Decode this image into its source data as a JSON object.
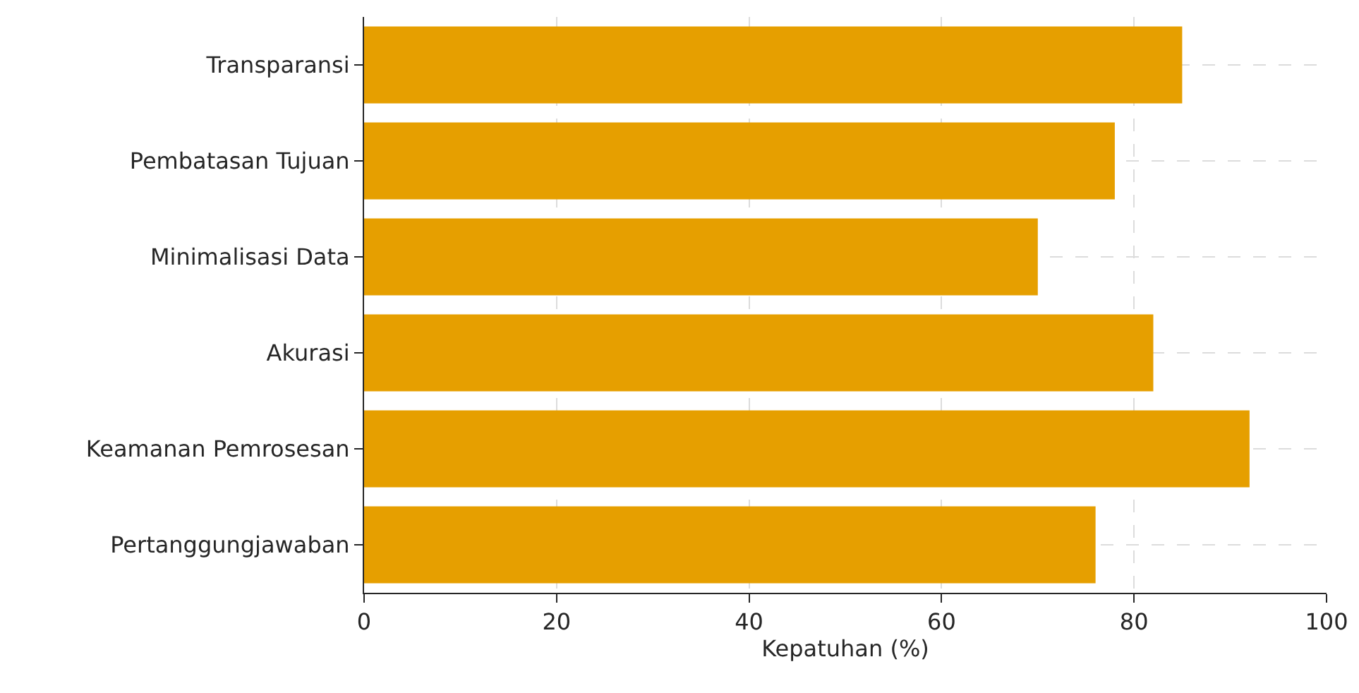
{
  "chart_data": {
    "type": "bar",
    "orientation": "horizontal",
    "xlabel": "Kepatuhan (%)",
    "categories": [
      "Transparansi",
      "Pembatasan Tujuan",
      "Minimalisasi Data",
      "Akurasi",
      "Keamanan Pemrosesan",
      "Pertanggungjawaban"
    ],
    "values": [
      85,
      78,
      70,
      82,
      92,
      76
    ],
    "color": "#e69f00",
    "xlim": [
      0,
      100
    ],
    "xticks": [
      0,
      20,
      40,
      60,
      80,
      100
    ],
    "grid": true
  }
}
